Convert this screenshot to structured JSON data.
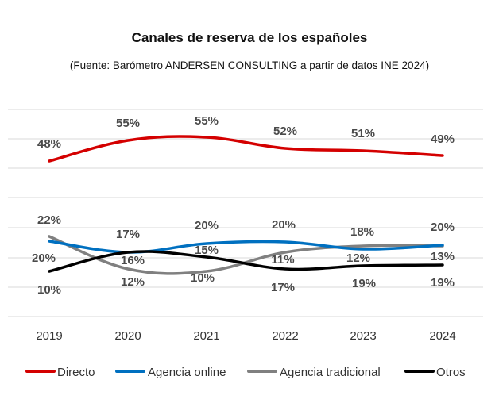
{
  "title": "Canales de reserva de los españoles",
  "subtitle": "(Fuente: Barómetro ANDERSEN CONSULTING a partir de datos INE 2024)",
  "chart_data": {
    "type": "line",
    "title": "Canales de reserva de los españoles",
    "subtitle": "(Fuente: Barómetro ANDERSEN CONSULTING a partir de datos INE 2024)",
    "x": [
      "2019",
      "2020",
      "2021",
      "2022",
      "2023",
      "2024"
    ],
    "series": [
      {
        "name": "Directo",
        "color": "#d40000",
        "values": [
          48,
          55,
          55,
          52,
          51,
          49
        ],
        "labels": [
          "48%",
          "55%",
          "55%",
          "52%",
          "51%",
          "49%"
        ]
      },
      {
        "name": "Agencia online",
        "color": "#0070c0",
        "values": [
          20,
          17,
          20,
          20,
          18,
          20
        ],
        "labels": [
          "20%",
          "17%",
          "20%",
          "20%",
          "18%",
          "20%"
        ]
      },
      {
        "name": "Agencia tradicional",
        "color": "#808080",
        "values": [
          22,
          12,
          10,
          17,
          19,
          19
        ],
        "labels": [
          "22%",
          "12%",
          "10%",
          "17%",
          "19%",
          "19%"
        ]
      },
      {
        "name": "Otros",
        "color": "#000000",
        "values": [
          10,
          16,
          15,
          11,
          12,
          13
        ],
        "labels": [
          "10%",
          "16%",
          "15%",
          "11%",
          "12%",
          "13%"
        ]
      }
    ],
    "grid": true,
    "legend": "bottom"
  }
}
